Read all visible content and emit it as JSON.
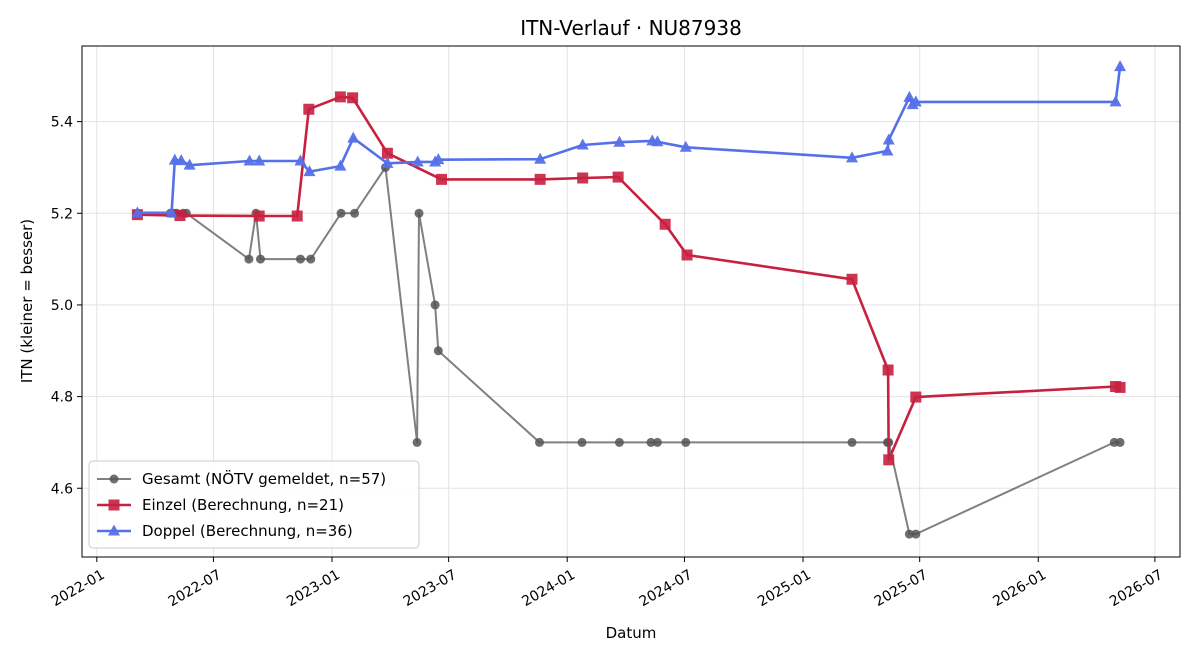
{
  "chart_data": {
    "type": "line",
    "title": "ITN-Verlauf · NU87938",
    "xlabel": "Datum",
    "ylabel": "ITN  (kleiner = besser)",
    "x_ticks": [
      "2022-01",
      "2022-07",
      "2023-01",
      "2023-07",
      "2024-01",
      "2024-07",
      "2025-01",
      "2025-07",
      "2026-01",
      "2026-07"
    ],
    "y_ticks": [
      "4.6",
      "4.8",
      "5.0",
      "5.2",
      "5.4"
    ],
    "xlim": [
      "2021-12-09",
      "2026-08-09"
    ],
    "ylim": [
      4.45,
      5.565
    ],
    "grid": true,
    "legend_position": "lower-left",
    "series": [
      {
        "name": "Gesamt (NÖTV gemeldet, n=57)",
        "color": "#555555",
        "marker": "circle",
        "points": [
          [
            "2022-03-05",
            5.2
          ],
          [
            "2022-04-25",
            5.2
          ],
          [
            "2022-05-01",
            5.2
          ],
          [
            "2022-05-05",
            5.2
          ],
          [
            "2022-05-15",
            5.2
          ],
          [
            "2022-05-20",
            5.2
          ],
          [
            "2022-08-25",
            5.1
          ],
          [
            "2022-09-05",
            5.2
          ],
          [
            "2022-09-12",
            5.1
          ],
          [
            "2022-11-13",
            5.1
          ],
          [
            "2022-11-29",
            5.1
          ],
          [
            "2023-01-15",
            5.2
          ],
          [
            "2023-02-05",
            5.2
          ],
          [
            "2023-03-25",
            5.3
          ],
          [
            "2023-05-13",
            4.7
          ],
          [
            "2023-05-16",
            5.2
          ],
          [
            "2023-06-10",
            5.0
          ],
          [
            "2023-06-15",
            4.9
          ],
          [
            "2023-11-19",
            4.7
          ],
          [
            "2024-01-24",
            4.7
          ],
          [
            "2024-03-22",
            4.7
          ],
          [
            "2024-05-10",
            4.7
          ],
          [
            "2024-05-20",
            4.7
          ],
          [
            "2024-07-03",
            4.7
          ],
          [
            "2025-03-18",
            4.7
          ],
          [
            "2025-05-12",
            4.7
          ],
          [
            "2025-05-14",
            4.7
          ],
          [
            "2025-06-15",
            4.5
          ],
          [
            "2025-06-25",
            4.5
          ],
          [
            "2026-04-29",
            4.7
          ],
          [
            "2026-05-08",
            4.7
          ]
        ]
      },
      {
        "name": "Einzel (Berechnung, n=21)",
        "color": "#c8203f",
        "marker": "square",
        "points": [
          [
            "2022-03-05",
            5.197
          ],
          [
            "2022-05-10",
            5.195
          ],
          [
            "2022-09-10",
            5.194
          ],
          [
            "2022-11-08",
            5.194
          ],
          [
            "2022-11-26",
            5.427
          ],
          [
            "2023-01-14",
            5.454
          ],
          [
            "2023-02-02",
            5.452
          ],
          [
            "2023-03-28",
            5.331
          ],
          [
            "2023-06-20",
            5.274
          ],
          [
            "2023-11-20",
            5.274
          ],
          [
            "2024-01-25",
            5.277
          ],
          [
            "2024-03-20",
            5.279
          ],
          [
            "2024-06-01",
            5.176
          ],
          [
            "2024-07-05",
            5.109
          ],
          [
            "2025-03-18",
            5.056
          ],
          [
            "2025-05-13",
            4.858
          ],
          [
            "2025-05-14",
            4.662
          ],
          [
            "2025-06-25",
            4.799
          ],
          [
            "2026-05-01",
            4.822
          ],
          [
            "2026-05-08",
            4.82
          ]
        ]
      },
      {
        "name": "Doppel (Berechnung, n=36)",
        "color": "#5570e8",
        "marker": "triangle",
        "points": [
          [
            "2022-03-05",
            5.201
          ],
          [
            "2022-04-27",
            5.201
          ],
          [
            "2022-05-02",
            5.316
          ],
          [
            "2022-05-12",
            5.315
          ],
          [
            "2022-05-25",
            5.305
          ],
          [
            "2022-08-26",
            5.314
          ],
          [
            "2022-09-10",
            5.314
          ],
          [
            "2022-11-13",
            5.314
          ],
          [
            "2022-11-27",
            5.291
          ],
          [
            "2023-01-14",
            5.303
          ],
          [
            "2023-02-03",
            5.364
          ],
          [
            "2023-03-28",
            5.309
          ],
          [
            "2023-05-14",
            5.312
          ],
          [
            "2023-06-10",
            5.312
          ],
          [
            "2023-06-15",
            5.317
          ],
          [
            "2023-11-20",
            5.318
          ],
          [
            "2024-01-25",
            5.349
          ],
          [
            "2024-03-22",
            5.355
          ],
          [
            "2024-05-12",
            5.358
          ],
          [
            "2024-05-20",
            5.356
          ],
          [
            "2024-07-03",
            5.344
          ],
          [
            "2025-03-18",
            5.321
          ],
          [
            "2025-05-12",
            5.336
          ],
          [
            "2025-05-14",
            5.36
          ],
          [
            "2025-06-15",
            5.453
          ],
          [
            "2025-06-20",
            5.437
          ],
          [
            "2025-06-25",
            5.443
          ],
          [
            "2026-05-01",
            5.443
          ],
          [
            "2026-05-08",
            5.52
          ]
        ]
      }
    ]
  }
}
